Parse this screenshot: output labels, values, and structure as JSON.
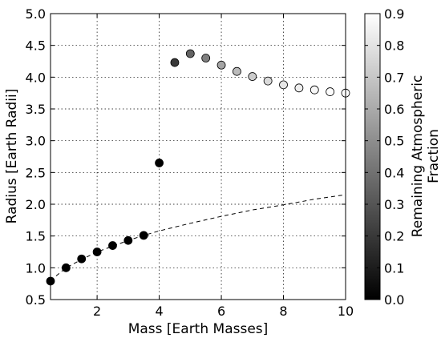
{
  "chart_data": {
    "type": "scatter",
    "xlabel": "Mass [Earth Masses]",
    "ylabel": "Radius [Earth Radii]",
    "xlim": [
      0.5,
      10
    ],
    "ylim": [
      0.5,
      5.0
    ],
    "x_ticks": [
      2,
      4,
      6,
      8,
      10
    ],
    "x_tick_labels": [
      "2",
      "4",
      "6",
      "8",
      "10"
    ],
    "y_ticks": [
      0.5,
      1.0,
      1.5,
      2.0,
      2.5,
      3.0,
      3.5,
      4.0,
      4.5,
      5.0
    ],
    "y_tick_labels": [
      "0.5",
      "1.0",
      "1.5",
      "2.0",
      "2.5",
      "3.0",
      "3.5",
      "4.0",
      "4.5",
      "5.0"
    ],
    "grid": true,
    "colorbar": {
      "label_lines": [
        "Remaining Atmospheric",
        "Fraction"
      ],
      "range": [
        0.0,
        0.9
      ],
      "ticks": [
        0.0,
        0.1,
        0.2,
        0.3,
        0.4,
        0.5,
        0.6,
        0.7,
        0.8,
        0.9
      ],
      "tick_labels": [
        "0.0",
        "0.1",
        "0.2",
        "0.3",
        "0.4",
        "0.5",
        "0.6",
        "0.7",
        "0.8",
        "0.9"
      ],
      "colormap": "gray"
    },
    "points": [
      {
        "x": 0.5,
        "y": 0.79,
        "fraction": 0.0
      },
      {
        "x": 1.0,
        "y": 1.0,
        "fraction": 0.0
      },
      {
        "x": 1.5,
        "y": 1.14,
        "fraction": 0.0
      },
      {
        "x": 2.0,
        "y": 1.25,
        "fraction": 0.0
      },
      {
        "x": 2.5,
        "y": 1.35,
        "fraction": 0.0
      },
      {
        "x": 3.0,
        "y": 1.43,
        "fraction": 0.0
      },
      {
        "x": 3.5,
        "y": 1.51,
        "fraction": 0.0
      },
      {
        "x": 4.0,
        "y": 2.65,
        "fraction": 0.0
      },
      {
        "x": 4.5,
        "y": 4.23,
        "fraction": 0.2
      },
      {
        "x": 5.0,
        "y": 4.37,
        "fraction": 0.35
      },
      {
        "x": 5.5,
        "y": 4.3,
        "fraction": 0.45
      },
      {
        "x": 6.0,
        "y": 4.19,
        "fraction": 0.58
      },
      {
        "x": 6.5,
        "y": 4.09,
        "fraction": 0.66
      },
      {
        "x": 7.0,
        "y": 4.01,
        "fraction": 0.72
      },
      {
        "x": 7.5,
        "y": 3.94,
        "fraction": 0.77
      },
      {
        "x": 8.0,
        "y": 3.88,
        "fraction": 0.81
      },
      {
        "x": 8.5,
        "y": 3.83,
        "fraction": 0.84
      },
      {
        "x": 9.0,
        "y": 3.8,
        "fraction": 0.87
      },
      {
        "x": 9.5,
        "y": 3.77,
        "fraction": 0.89
      },
      {
        "x": 10.0,
        "y": 3.75,
        "fraction": 0.91
      }
    ],
    "reference_curve": {
      "style": "dashed",
      "color": "#000000",
      "x": [
        0.5,
        1.0,
        1.5,
        2.0,
        2.5,
        3.0,
        3.5,
        4.0,
        5.0,
        6.0,
        7.0,
        8.0,
        9.0,
        10.0
      ],
      "y": [
        0.8,
        1.0,
        1.13,
        1.25,
        1.34,
        1.43,
        1.51,
        1.58,
        1.7,
        1.81,
        1.91,
        1.99,
        2.08,
        2.15
      ]
    }
  }
}
